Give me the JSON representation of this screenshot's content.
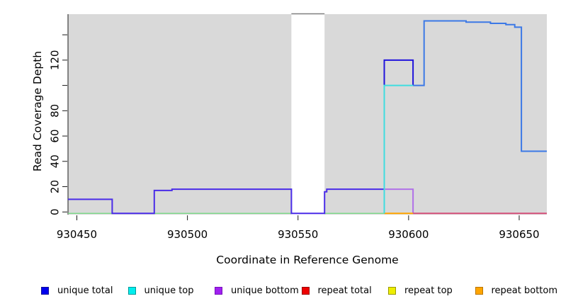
{
  "chart_data": {
    "type": "line",
    "subtype": "step-coverage-plot",
    "title": "",
    "xlabel": "Coordinate in Reference Genome",
    "ylabel": "Read Coverage Depth",
    "xlim": [
      930446,
      930662.5
    ],
    "ylim": [
      -2.1,
      156.3
    ],
    "grid": false,
    "plot_bg_color": "#d9d9d9",
    "axis_color": "#1a1a1a",
    "x_ticks": [
      {
        "value": 930450,
        "label": "930450"
      },
      {
        "value": 930500,
        "label": "930500"
      },
      {
        "value": 930550,
        "label": "930550"
      },
      {
        "value": 930600,
        "label": "930600"
      },
      {
        "value": 930650,
        "label": "930650"
      }
    ],
    "y_ticks": [
      {
        "value": 0,
        "label": "0"
      },
      {
        "value": 20,
        "label": "20"
      },
      {
        "value": 40,
        "label": "40"
      },
      {
        "value": 60,
        "label": "60"
      },
      {
        "value": 80,
        "label": "80"
      },
      {
        "value": 100,
        "label": ""
      },
      {
        "value": 120,
        "label": "120"
      },
      {
        "value": 140,
        "label": ""
      }
    ],
    "gap_band": {
      "x_start": 930547,
      "x_end": 930562,
      "fill": "#ffffff",
      "top_border": "#7f7f7f",
      "note": "white no-data band over plot area"
    },
    "legend": [
      {
        "label": "unique total",
        "color": "#0000ee",
        "border": "#111199"
      },
      {
        "label": "unique top",
        "color": "#00eeee",
        "border": "#009999"
      },
      {
        "label": "unique bottom",
        "color": "#a020f0",
        "border": "#7711bb"
      },
      {
        "label": "repeat total",
        "color": "#ee0000",
        "border": "#990000"
      },
      {
        "label": "repeat top",
        "color": "#eeee00",
        "border": "#999900"
      },
      {
        "label": "repeat bottom",
        "color": "#ffa500",
        "border": "#b97400"
      }
    ],
    "series": [
      {
        "name": "baseline-green",
        "width": 1.5,
        "segments": [
          {
            "color": "#7fd98c",
            "points": [
              [
                930446,
                0
              ],
              [
                930589,
                0
              ]
            ]
          }
        ]
      },
      {
        "name": "unique bottom",
        "width": 2,
        "segments": [
          {
            "color": "#b171e8",
            "points": [
              [
                930589,
                18
              ],
              [
                930602,
                18
              ],
              [
                930602,
                0
              ]
            ]
          }
        ]
      },
      {
        "name": "repeat bottom",
        "width": 2,
        "segments": [
          {
            "color": "#ffa500",
            "points": [
              [
                930589,
                0
              ],
              [
                930602,
                0
              ]
            ]
          }
        ]
      },
      {
        "name": "repeat total",
        "width": 2,
        "segments": [
          {
            "color": "#d4507a",
            "points": [
              [
                930602,
                0
              ],
              [
                930662.5,
                0
              ]
            ]
          }
        ]
      },
      {
        "name": "repeat top",
        "width": 2,
        "segments": []
      },
      {
        "name": "unique total",
        "width": 2,
        "segments": [
          {
            "color": "#4a2ce8",
            "points": [
              [
                930446,
                10
              ],
              [
                930466,
                10
              ],
              [
                930466,
                0
              ],
              [
                930485,
                0
              ],
              [
                930485,
                17
              ],
              [
                930493,
                17
              ],
              [
                930493,
                18
              ],
              [
                930547,
                18
              ],
              [
                930547,
                0
              ],
              [
                930562,
                0
              ],
              [
                930562,
                16
              ],
              [
                930563,
                16
              ],
              [
                930563,
                18
              ],
              [
                930589,
                18
              ]
            ]
          },
          {
            "color": "#2114dc",
            "points": [
              [
                930589,
                18
              ],
              [
                930589,
                120
              ],
              [
                930602,
                120
              ],
              [
                930602,
                100
              ]
            ]
          },
          {
            "color": "#3c79e6",
            "points": [
              [
                930602,
                100
              ],
              [
                930607,
                100
              ],
              [
                930607,
                151
              ],
              [
                930626,
                151
              ],
              [
                930626,
                150
              ],
              [
                930637,
                150
              ],
              [
                930637,
                149
              ],
              [
                930644,
                149
              ],
              [
                930644,
                148
              ],
              [
                930648,
                148
              ],
              [
                930648,
                146
              ],
              [
                930651,
                146
              ],
              [
                930651,
                48
              ],
              [
                930662.5,
                48
              ]
            ]
          }
        ]
      },
      {
        "name": "unique top",
        "width": 2,
        "segments": [
          {
            "color": "#3fdde0",
            "points": [
              [
                930589,
                0
              ],
              [
                930589,
                100
              ],
              [
                930602,
                100
              ]
            ]
          }
        ]
      }
    ]
  }
}
